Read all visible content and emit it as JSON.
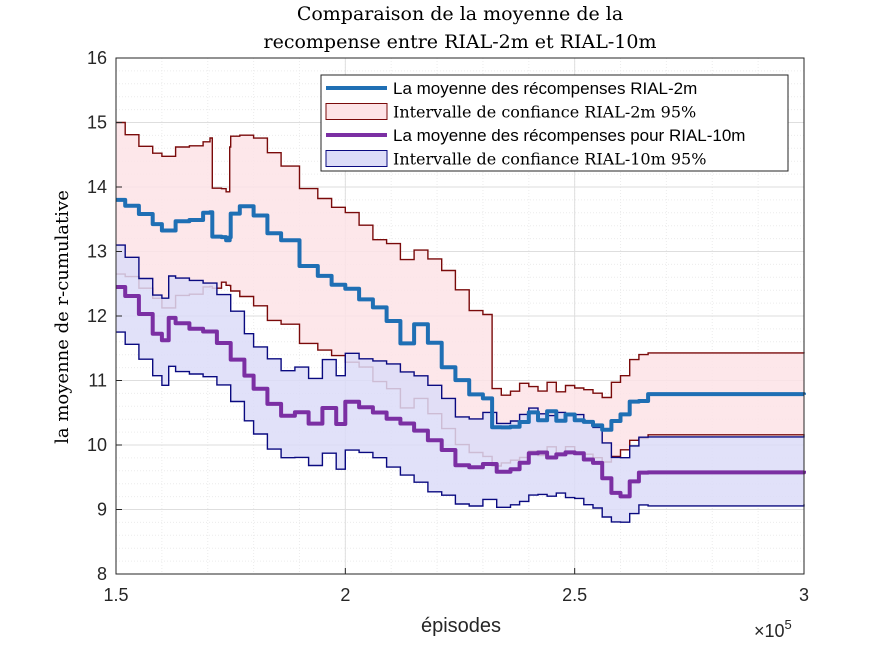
{
  "chart_data": {
    "type": "line",
    "title_lines": [
      "Comparaison de la moyenne de la",
      "recompense entre RIAL-2m et RIAL-10m"
    ],
    "xlabel": "épisodes",
    "ylabel": "la moyenne de r-cumulative",
    "xlim": [
      150000,
      300000
    ],
    "ylim": [
      8,
      16
    ],
    "x_exponent_label": "×10",
    "x_exponent_power": "5",
    "xtick_values": [
      150000,
      200000,
      250000,
      300000
    ],
    "xtick_labels": [
      "1.5",
      "2",
      "2.5",
      "3"
    ],
    "ytick_values": [
      8,
      9,
      10,
      11,
      12,
      13,
      14,
      15,
      16
    ],
    "ytick_labels": [
      "8",
      "9",
      "10",
      "11",
      "12",
      "13",
      "14",
      "15",
      "16"
    ],
    "grid": true,
    "minor_grid": true,
    "legend_position": "top-right",
    "legend": [
      {
        "label": "La moyenne des récompenses RIAL-2m",
        "kind": "line",
        "color": "#1f6fb4"
      },
      {
        "label": "Intervalle de confiance RIAL-2m 95%",
        "kind": "patch",
        "color": "#fde3e6",
        "edge": "#7a0a0a"
      },
      {
        "label": "La moyenne des récompenses pour RIAL-10m",
        "kind": "line",
        "color": "#7b2fa3"
      },
      {
        "label": "Intervalle de confiance RIAL-10m 95%",
        "kind": "patch",
        "color": "#dcdcf8",
        "edge": "#0a0a80"
      }
    ],
    "series": [
      {
        "name": "La moyenne des récompenses RIAL-2m",
        "color": "#1f6fb4",
        "x": [
          150000,
          152000,
          155000,
          158000,
          160000,
          163000,
          166000,
          169000,
          170500,
          171000,
          173000,
          174000,
          174800,
          175000,
          177000,
          180000,
          183000,
          186000,
          190000,
          194000,
          197000,
          200000,
          203000,
          206000,
          209000,
          212000,
          215000,
          218000,
          221000,
          224000,
          227000,
          230000,
          232000,
          234000,
          236000,
          238000,
          240000,
          242000,
          244000,
          246000,
          248000,
          250000,
          252000,
          254000,
          256000,
          258000,
          260000,
          262000,
          264000,
          266000,
          300000
        ],
        "values": [
          13.8,
          13.7,
          13.6,
          13.4,
          13.35,
          13.45,
          13.5,
          13.6,
          13.6,
          13.25,
          13.2,
          13.2,
          13.2,
          13.6,
          13.7,
          13.55,
          13.3,
          13.15,
          12.8,
          12.6,
          12.5,
          12.42,
          12.25,
          12.15,
          11.9,
          11.6,
          11.85,
          11.6,
          11.2,
          11.0,
          10.8,
          10.7,
          10.3,
          10.25,
          10.3,
          10.35,
          10.5,
          10.4,
          10.5,
          10.4,
          10.45,
          10.4,
          10.35,
          10.3,
          10.25,
          10.35,
          10.5,
          10.65,
          10.7,
          10.78,
          10.78
        ]
      },
      {
        "name": "Intervalle de confiance RIAL-2m 95%",
        "color": "#7a0a0a",
        "x": [
          150000,
          152000,
          155000,
          158000,
          160000,
          163000,
          166000,
          169000,
          170500,
          171000,
          173000,
          174000,
          174800,
          175000,
          177000,
          180000,
          183000,
          186000,
          190000,
          194000,
          197000,
          200000,
          203000,
          206000,
          209000,
          212000,
          215000,
          218000,
          221000,
          224000,
          227000,
          230000,
          232000,
          234000,
          236000,
          238000,
          240000,
          242000,
          244000,
          246000,
          248000,
          250000,
          252000,
          254000,
          256000,
          258000,
          260000,
          262000,
          264000,
          266000,
          300000
        ],
        "upper": [
          15.0,
          14.8,
          14.65,
          14.5,
          14.5,
          14.6,
          14.65,
          14.7,
          14.75,
          14.0,
          13.95,
          13.95,
          14.6,
          14.8,
          14.8,
          14.75,
          14.55,
          14.3,
          14.0,
          13.8,
          13.7,
          13.6,
          13.4,
          13.2,
          13.1,
          12.9,
          13.0,
          12.9,
          12.7,
          12.4,
          12.1,
          12.0,
          10.9,
          10.75,
          10.85,
          10.95,
          10.9,
          10.85,
          10.95,
          10.85,
          10.9,
          10.9,
          10.85,
          10.8,
          10.75,
          10.95,
          11.1,
          11.3,
          11.42,
          11.42,
          11.42
        ],
        "lower": [
          12.65,
          12.6,
          12.45,
          12.25,
          12.15,
          12.3,
          12.35,
          12.45,
          12.45,
          12.45,
          12.5,
          12.5,
          12.45,
          12.4,
          12.3,
          12.15,
          11.95,
          11.85,
          11.6,
          11.45,
          11.4,
          11.28,
          11.2,
          11.0,
          10.85,
          10.6,
          10.7,
          10.5,
          10.25,
          10.0,
          9.9,
          9.8,
          9.7,
          9.7,
          9.78,
          9.8,
          9.9,
          9.85,
          9.95,
          9.9,
          9.95,
          9.9,
          9.85,
          9.8,
          9.75,
          9.8,
          9.95,
          10.05,
          10.12,
          10.15,
          10.15
        ]
      },
      {
        "name": "La moyenne des récompenses pour RIAL-10m",
        "color": "#7b2fa3",
        "x": [
          150000,
          152000,
          155000,
          158000,
          160000,
          161500,
          163000,
          166000,
          169000,
          172000,
          175000,
          178000,
          180000,
          183000,
          186000,
          189000,
          192000,
          195000,
          198000,
          200000,
          203000,
          206000,
          209000,
          212000,
          215000,
          218000,
          221000,
          224000,
          227000,
          230000,
          233000,
          236000,
          238000,
          240000,
          242000,
          244000,
          246000,
          248000,
          250000,
          252000,
          254000,
          256000,
          258000,
          260000,
          262000,
          264000,
          266000,
          300000
        ],
        "values": [
          12.45,
          12.3,
          12.05,
          11.7,
          11.65,
          11.95,
          11.9,
          11.8,
          11.75,
          11.6,
          11.3,
          11.1,
          10.85,
          10.65,
          10.45,
          10.5,
          10.35,
          10.55,
          10.35,
          10.65,
          10.6,
          10.5,
          10.4,
          10.35,
          10.2,
          10.1,
          9.9,
          9.7,
          9.65,
          9.7,
          9.6,
          9.6,
          9.75,
          9.85,
          9.9,
          9.8,
          9.85,
          9.9,
          9.85,
          9.8,
          9.7,
          9.5,
          9.25,
          9.2,
          9.45,
          9.55,
          9.6,
          9.6
        ]
      },
      {
        "name": "Intervalle de confiance RIAL-10m 95%",
        "color": "#0a0a80",
        "x": [
          150000,
          152000,
          155000,
          158000,
          160000,
          161500,
          163000,
          166000,
          169000,
          172000,
          175000,
          178000,
          180000,
          183000,
          186000,
          189000,
          192000,
          195000,
          198000,
          200000,
          203000,
          206000,
          209000,
          212000,
          215000,
          218000,
          221000,
          224000,
          227000,
          230000,
          233000,
          236000,
          238000,
          240000,
          242000,
          244000,
          246000,
          248000,
          250000,
          252000,
          254000,
          256000,
          258000,
          260000,
          262000,
          264000,
          266000,
          300000
        ],
        "upper": [
          13.1,
          12.9,
          12.6,
          12.3,
          12.3,
          12.6,
          12.6,
          12.55,
          12.5,
          12.35,
          12.05,
          11.75,
          11.5,
          11.35,
          11.15,
          11.2,
          11.05,
          11.3,
          11.1,
          11.4,
          11.35,
          11.3,
          11.25,
          11.15,
          11.05,
          10.95,
          10.7,
          10.45,
          10.4,
          10.5,
          10.35,
          10.35,
          10.5,
          10.55,
          10.5,
          10.45,
          10.5,
          10.5,
          10.45,
          10.4,
          10.25,
          10.05,
          9.8,
          9.8,
          10.0,
          10.1,
          10.15,
          10.15
        ],
        "lower": [
          11.75,
          11.55,
          11.35,
          11.05,
          10.95,
          11.2,
          11.15,
          11.1,
          11.05,
          10.95,
          10.65,
          10.4,
          10.15,
          9.95,
          9.8,
          9.8,
          9.7,
          9.85,
          9.65,
          9.9,
          9.9,
          9.8,
          9.65,
          9.55,
          9.4,
          9.3,
          9.2,
          9.1,
          9.05,
          9.15,
          9.05,
          9.05,
          9.15,
          9.2,
          9.25,
          9.2,
          9.25,
          9.2,
          9.15,
          9.1,
          9.0,
          8.9,
          8.8,
          8.8,
          8.95,
          9.05,
          9.08,
          9.08
        ]
      }
    ]
  }
}
